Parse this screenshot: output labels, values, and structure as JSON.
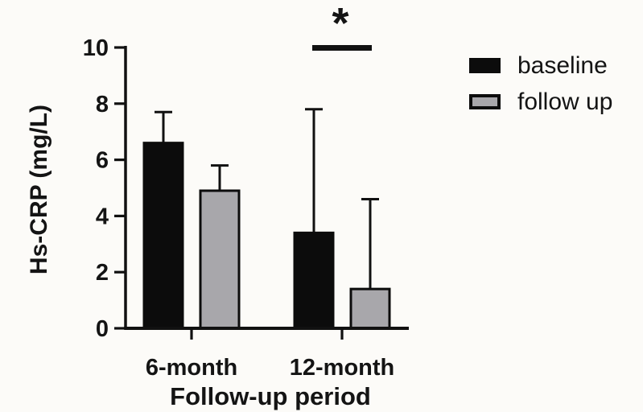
{
  "figure": {
    "background_color": "#fcfbf8",
    "text_color": "#141414",
    "axis_color": "#111111"
  },
  "chart_data": {
    "type": "bar",
    "title": "",
    "xlabel": "Follow-up period",
    "ylabel": "Hs-CRP (mg/L)",
    "categories": [
      "6-month",
      "12-month"
    ],
    "series": [
      {
        "name": "baseline",
        "color": "#0c0c0c",
        "border_color": "#0c0c0c",
        "values": [
          6.6,
          3.4
        ],
        "error_plus": [
          1.1,
          4.4
        ]
      },
      {
        "name": "follow up",
        "color": "#a8a7ab",
        "border_color": "#0c0c0c",
        "values": [
          4.9,
          1.4
        ],
        "error_plus": [
          0.9,
          3.2
        ]
      }
    ],
    "ylim": [
      0,
      10
    ],
    "yticks": [
      0,
      2,
      4,
      6,
      8,
      10
    ],
    "grid": false,
    "legend_position": "right",
    "significance": {
      "label": "*",
      "category": "12-month"
    }
  }
}
